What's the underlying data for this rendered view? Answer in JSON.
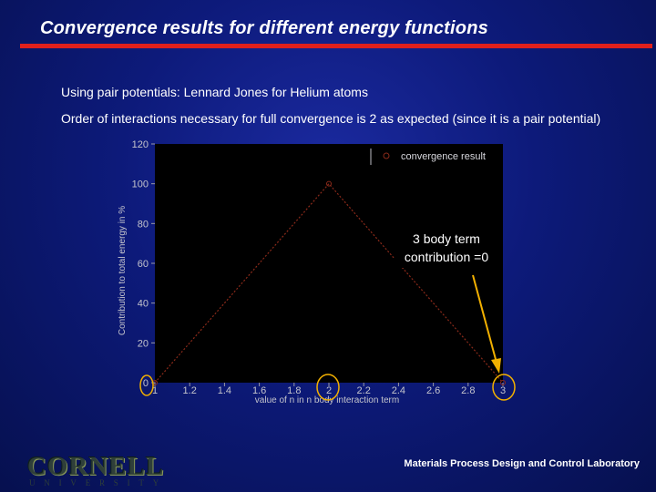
{
  "slide": {
    "title": "Convergence results for different energy functions",
    "accent_color": "#e0201c",
    "bullets": [
      "Using pair potentials: Lennard Jones for Helium atoms",
      "Order of interactions necessary for full convergence is 2 as expected (since it is a pair potential)"
    ],
    "logo": {
      "main": "CORNELL",
      "sub": "UNIVERSITY"
    },
    "footer": "Materials Process Design and Control Laboratory"
  },
  "chart_data": {
    "type": "line",
    "x": [
      1,
      2,
      3
    ],
    "series": [
      {
        "name": "convergence result",
        "values": [
          0,
          100,
          0
        ],
        "color": "#8b2a1a"
      }
    ],
    "xlabel": "value of n in n body interaction term",
    "ylabel": "Contribution to total energy in %",
    "xlim": [
      1,
      3
    ],
    "ylim": [
      0,
      120
    ],
    "xticks": [
      1,
      1.2,
      1.4,
      1.6,
      1.8,
      2,
      2.2,
      2.4,
      2.6,
      2.8,
      3
    ],
    "xtick_labels": [
      "1",
      "1.2",
      "1.4",
      "1.6",
      "1.8",
      "2",
      "2.2",
      "2.4",
      "2.6",
      "2.8",
      "3"
    ],
    "yticks": [
      0,
      20,
      40,
      60,
      80,
      100,
      120
    ],
    "ytick_labels": [
      "0",
      "20",
      "40",
      "60",
      "80",
      "100",
      "120"
    ],
    "background": "#000000",
    "grid": false,
    "legend_position": "top-right",
    "annotation": {
      "text": "3 body term contribution =0",
      "color": "#f2b000"
    },
    "highlighted_ticks": [
      "0",
      "1",
      "2",
      "3"
    ],
    "highlight_color": "#f2b000"
  }
}
